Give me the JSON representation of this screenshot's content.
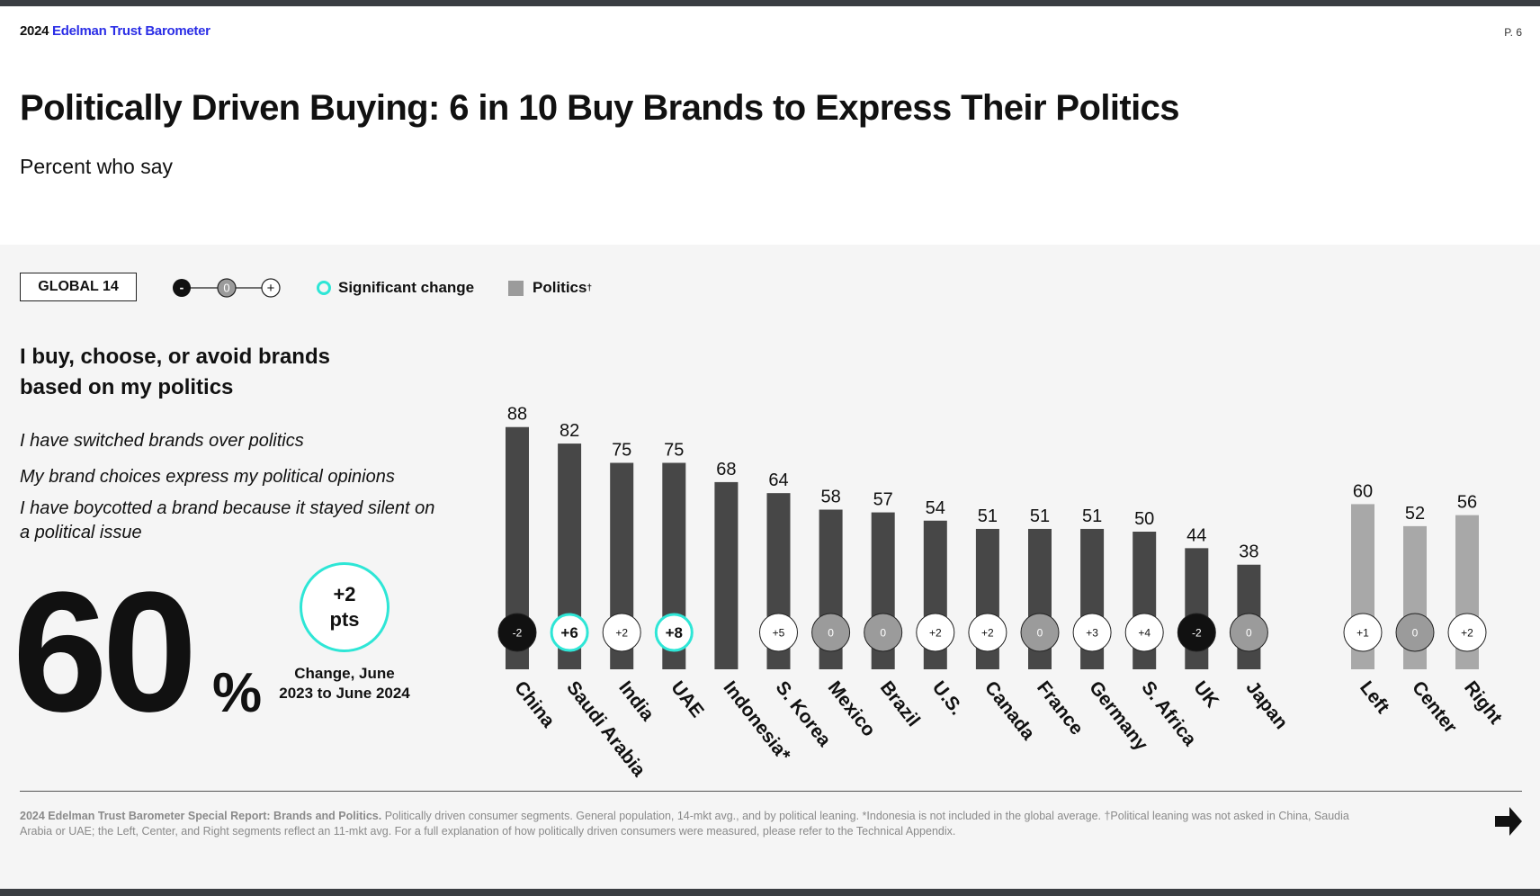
{
  "header": {
    "brand_year": "2024",
    "brand_name": "Edelman Trust Barometer",
    "page_number": "P. 6"
  },
  "title": "Politically Driven Buying: 6 in 10 Buy Brands to Express Their Politics",
  "subtitle": "Percent who say",
  "legend": {
    "global_label": "GLOBAL 14",
    "scale": {
      "minus": "-",
      "zero": "0",
      "plus": "+"
    },
    "significant_label": "Significant change",
    "politics_label": "Politics",
    "politics_marker": "†",
    "colors": {
      "bar": "#474747",
      "politics_bar": "#a8a8a8",
      "significant": "#2ee6d6",
      "negative": "#111111",
      "zero": "#9b9b9b",
      "positive": "#ffffff"
    }
  },
  "question": {
    "title": "I buy, choose, or avoid brands based on my politics",
    "items": [
      "I have switched brands over politics",
      "My brand choices express my political opinions",
      "I have boycotted a brand because it stayed silent on a political issue"
    ]
  },
  "global": {
    "value": "60",
    "unit": "%",
    "change_value": "+2",
    "change_unit": "pts",
    "change_caption": "Change, June 2023 to June 2024"
  },
  "chart_data": {
    "type": "bar",
    "ylim": [
      0,
      100
    ],
    "categories": [
      "China",
      "Saudi Arabia",
      "India",
      "UAE",
      "Indonesia*",
      "S. Korea",
      "Mexico",
      "Brazil",
      "U.S.",
      "Canada",
      "France",
      "Germany",
      "S. Africa",
      "UK",
      "Japan",
      "Left",
      "Center",
      "Right"
    ],
    "values": [
      88,
      82,
      75,
      75,
      68,
      64,
      58,
      57,
      54,
      51,
      51,
      51,
      50,
      44,
      38,
      60,
      52,
      56
    ],
    "changes": [
      "-2",
      "+6",
      "+2",
      "+8",
      null,
      "+5",
      "0",
      "0",
      "+2",
      "+2",
      "0",
      "+3",
      "+4",
      "-2",
      "0",
      "+1",
      "0",
      "+2"
    ],
    "significant": [
      false,
      true,
      false,
      true,
      false,
      false,
      false,
      false,
      false,
      false,
      false,
      false,
      false,
      false,
      false,
      false,
      false,
      false
    ],
    "group": [
      "country",
      "country",
      "country",
      "country",
      "country",
      "country",
      "country",
      "country",
      "country",
      "country",
      "country",
      "country",
      "country",
      "country",
      "country",
      "politics",
      "politics",
      "politics"
    ]
  },
  "footer": {
    "source_bold": "2024 Edelman Trust Barometer Special Report: Brands and Politics.",
    "source_text": " Politically driven consumer segments. General population, 14-mkt avg., and by political leaning. *Indonesia is not included in the global average. †Political leaning was not asked in China, Saudia Arabia or UAE; the Left, Center, and Right segments reflect an 11-mkt avg. For a full explanation of how politically driven consumers were measured, please refer to the Technical Appendix."
  }
}
